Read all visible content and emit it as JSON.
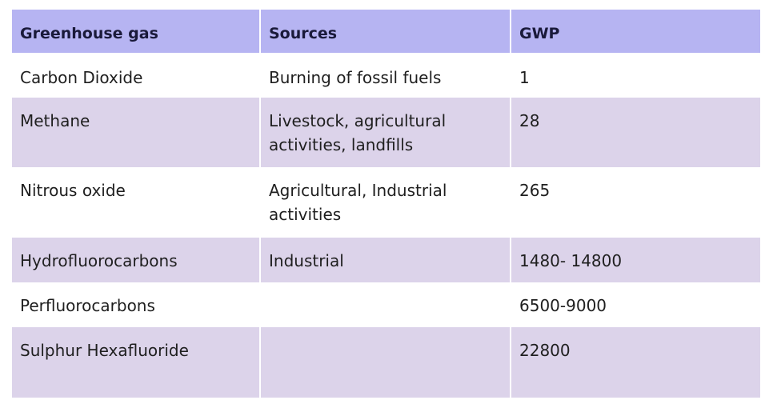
{
  "table": {
    "headers": [
      "Greenhouse gas",
      "Sources",
      "GWP"
    ],
    "rows": [
      [
        "Carbon Dioxide",
        "Burning of fossil fuels",
        "1"
      ],
      [
        "Methane",
        "Livestock, agricultural activities, landfills",
        "28"
      ],
      [
        "Nitrous oxide",
        "Agricultural, Industrial activities",
        "265"
      ],
      [
        "Hydrofluorocarbons",
        "Industrial",
        "1480- 14800"
      ],
      [
        "Perfluorocarbons",
        "",
        "6500-9000"
      ],
      [
        "Sulphur Hexafluoride",
        "",
        "22800"
      ]
    ]
  },
  "colors": {
    "header_bg": "#b6b4f2",
    "stripe_bg": "#dcd3ea"
  }
}
